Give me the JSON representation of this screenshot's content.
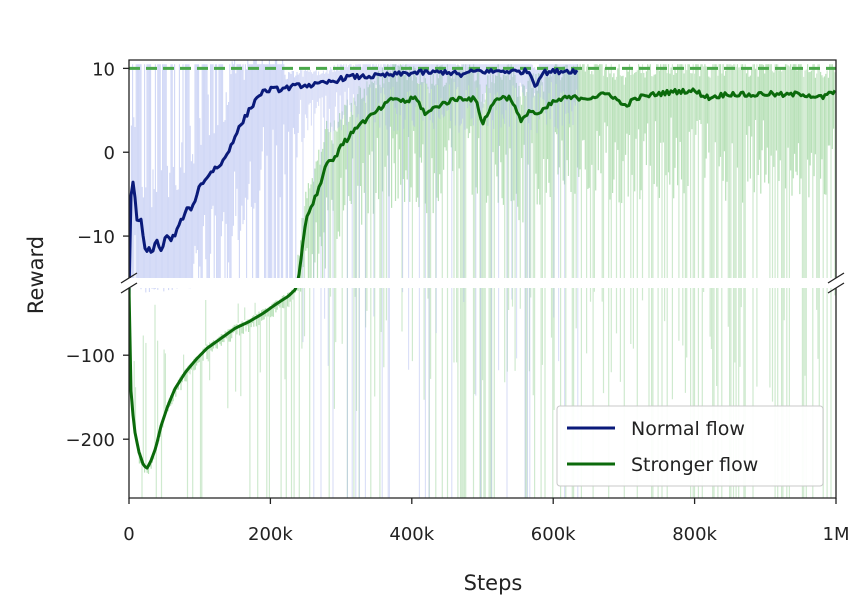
{
  "chart_data": {
    "type": "line",
    "xlabel": "Steps",
    "ylabel": "Reward",
    "xlim": [
      0,
      1000000
    ],
    "x_ticks": [
      {
        "value": 0,
        "label": "0"
      },
      {
        "value": 200000,
        "label": "200k"
      },
      {
        "value": 400000,
        "label": "400k"
      },
      {
        "value": 600000,
        "label": "600k"
      },
      {
        "value": 800000,
        "label": "800k"
      },
      {
        "value": 1000000,
        "label": "1M"
      }
    ],
    "broken_y_axis": true,
    "y_upper_range": [
      -15,
      11
    ],
    "y_lower_range": [
      -270,
      -20
    ],
    "y_ticks_upper": [
      {
        "value": 10,
        "label": "10"
      },
      {
        "value": 0,
        "label": "0"
      },
      {
        "value": -10,
        "label": "−10"
      }
    ],
    "y_ticks_lower": [
      {
        "value": -100,
        "label": "−100"
      },
      {
        "value": -200,
        "label": "−200"
      }
    ],
    "reference_line": {
      "value": 10,
      "style": "dashed",
      "color": "#4aa84a"
    },
    "grid": false,
    "legend_position": "bottom-right",
    "colors": {
      "normal_line": "#0a1a7a",
      "normal_band": "#aab6ee",
      "stronger_line": "#0b6a0b",
      "stronger_band": "#a8d9a8",
      "dashed": "#4aa84a"
    },
    "series": [
      {
        "name": "Normal flow",
        "color": "#0a1a7a",
        "x": [
          0,
          2000,
          5000,
          8000,
          12000,
          16000,
          20000,
          24000,
          28000,
          33000,
          38000,
          45000,
          52000,
          60000,
          70000,
          80000,
          90000,
          100000,
          110000,
          120000,
          130000,
          140000,
          150000,
          160000,
          170000,
          185000,
          200000,
          215000,
          230000,
          245000,
          260000,
          275000,
          290000,
          310000,
          330000,
          350000,
          370000,
          390000,
          410000,
          430000,
          450000,
          470000,
          490000,
          510000,
          530000,
          550000,
          565000,
          575000,
          585000,
          600000,
          615000,
          635000
        ],
        "y": [
          -30,
          -6,
          -3.5,
          -5,
          -9,
          -7.5,
          -10,
          -12.5,
          -11,
          -12.5,
          -10,
          -12,
          -10,
          -10.5,
          -9,
          -7,
          -6.5,
          -4,
          -3,
          -2,
          -1.5,
          0,
          2,
          3.5,
          5,
          7,
          7.5,
          7.5,
          7.8,
          8,
          8,
          8.2,
          8.5,
          9,
          9,
          9.1,
          9.2,
          9.4,
          9.5,
          9.5,
          9.6,
          9.2,
          9.7,
          9.6,
          9.7,
          9.6,
          9.7,
          8,
          9.5,
          9.6,
          9.7,
          9.7
        ]
      },
      {
        "name": "Stronger flow",
        "color": "#0b6a0b",
        "x": [
          0,
          3000,
          8000,
          14000,
          20000,
          25000,
          30000,
          38000,
          45000,
          55000,
          65000,
          80000,
          95000,
          110000,
          130000,
          150000,
          170000,
          190000,
          210000,
          225000,
          235000,
          240000,
          250000,
          260000,
          270000,
          280000,
          290000,
          300000,
          310000,
          320000,
          330000,
          345000,
          360000,
          375000,
          390000,
          405000,
          420000,
          435000,
          450000,
          470000,
          490000,
          500000,
          520000,
          540000,
          555000,
          565000,
          580000,
          600000,
          620000,
          650000,
          680000,
          700000,
          720000,
          750000,
          780000,
          800000,
          820000,
          850000,
          880000,
          900000,
          930000,
          950000,
          980000,
          1000000
        ],
        "y": [
          -20,
          -150,
          -190,
          -215,
          -230,
          -235,
          -228,
          -210,
          -185,
          -160,
          -140,
          -120,
          -105,
          -92,
          -80,
          -68,
          -60,
          -50,
          -38,
          -30,
          -22,
          -15,
          -8,
          -6,
          -4,
          -1,
          -1,
          1,
          1.5,
          3,
          3.5,
          4.5,
          5.5,
          6.5,
          6,
          6.5,
          4.5,
          5.5,
          6,
          6.5,
          6.3,
          3.5,
          6.5,
          6.5,
          3.5,
          5,
          4.5,
          6,
          6.5,
          6.5,
          7,
          5.5,
          6.5,
          7,
          7.3,
          7.3,
          6.5,
          7,
          6.8,
          7,
          6.8,
          7,
          6.5,
          7.3
        ]
      }
    ]
  }
}
